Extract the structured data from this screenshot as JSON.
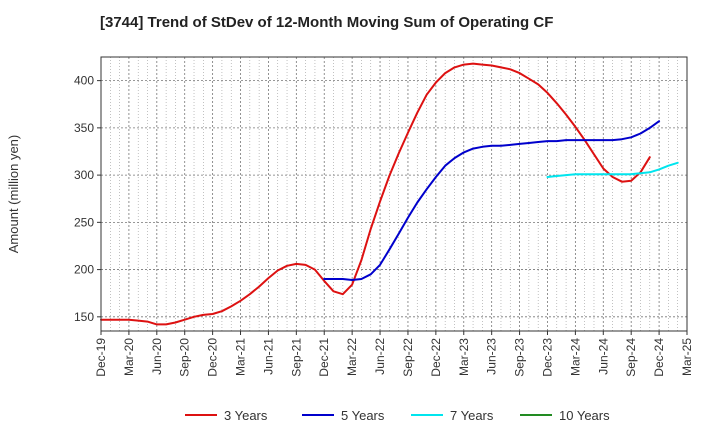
{
  "title": "[3744]  Trend of StDev of 12-Month Moving Sum of Operating CF",
  "chart_data": {
    "type": "line",
    "title": "[3744]  Trend of StDev of 12-Month Moving Sum of Operating CF",
    "ylabel": "Amount (million yen)",
    "xlabel": "",
    "ylim": [
      135,
      425
    ],
    "yticks": [
      150,
      200,
      250,
      300,
      350,
      400
    ],
    "x_ticks": [
      "Dec-19",
      "Mar-20",
      "Jun-20",
      "Sep-20",
      "Dec-20",
      "Mar-21",
      "Jun-21",
      "Sep-21",
      "Dec-21",
      "Mar-22",
      "Jun-22",
      "Sep-22",
      "Dec-22",
      "Mar-23",
      "Jun-23",
      "Sep-23",
      "Dec-23",
      "Mar-24",
      "Jun-24",
      "Sep-24",
      "Dec-24",
      "Mar-25"
    ],
    "grid": true,
    "legend_position": "bottom",
    "series": [
      {
        "name": "3 Years",
        "color": "#dd1111",
        "start_index": 0,
        "values": [
          147,
          147,
          147,
          147,
          146,
          145,
          142,
          142,
          144,
          147,
          150,
          152,
          153,
          156,
          161,
          167,
          174,
          182,
          191,
          199,
          204,
          206,
          205,
          200,
          188,
          177,
          174,
          184,
          210,
          243,
          272,
          299,
          323,
          345,
          366,
          385,
          398,
          408,
          414,
          417,
          418,
          417,
          416,
          414,
          412,
          408,
          402,
          396,
          387,
          376,
          364,
          351,
          337,
          322,
          307,
          298,
          293,
          294,
          303,
          319
        ]
      },
      {
        "name": "5 Years",
        "color": "#0000cc",
        "start_index": 24,
        "values": [
          190,
          190,
          190,
          189,
          190,
          195,
          205,
          221,
          238,
          255,
          271,
          285,
          298,
          310,
          318,
          324,
          328,
          330,
          331,
          331,
          332,
          333,
          334,
          335,
          336,
          336,
          337,
          337,
          337,
          337,
          337,
          337,
          338,
          340,
          344,
          350,
          357
        ]
      },
      {
        "name": "7 Years",
        "color": "#00e5ee",
        "start_index": 48,
        "values": [
          298,
          299,
          300,
          301,
          301,
          301,
          301,
          301,
          301,
          301,
          302,
          303,
          306,
          310,
          313
        ]
      },
      {
        "name": "10 Years",
        "color": "#228b22",
        "start_index": 0,
        "values": []
      }
    ]
  }
}
